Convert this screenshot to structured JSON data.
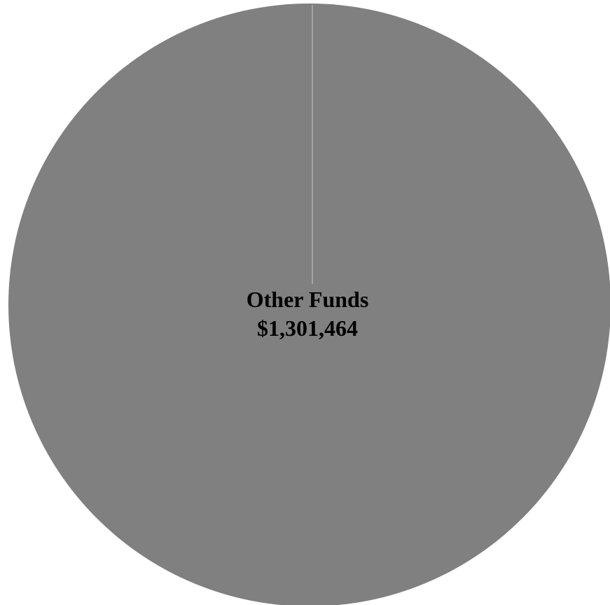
{
  "chart_data": {
    "type": "pie",
    "title": "",
    "slices": [
      {
        "label": "Other Funds",
        "value": 1301464,
        "value_label": "$1,301,464",
        "color": "#808080"
      }
    ],
    "legend": "none"
  },
  "colors": {
    "background": "#ffffff",
    "slice_separator": "#c8c8c8"
  }
}
